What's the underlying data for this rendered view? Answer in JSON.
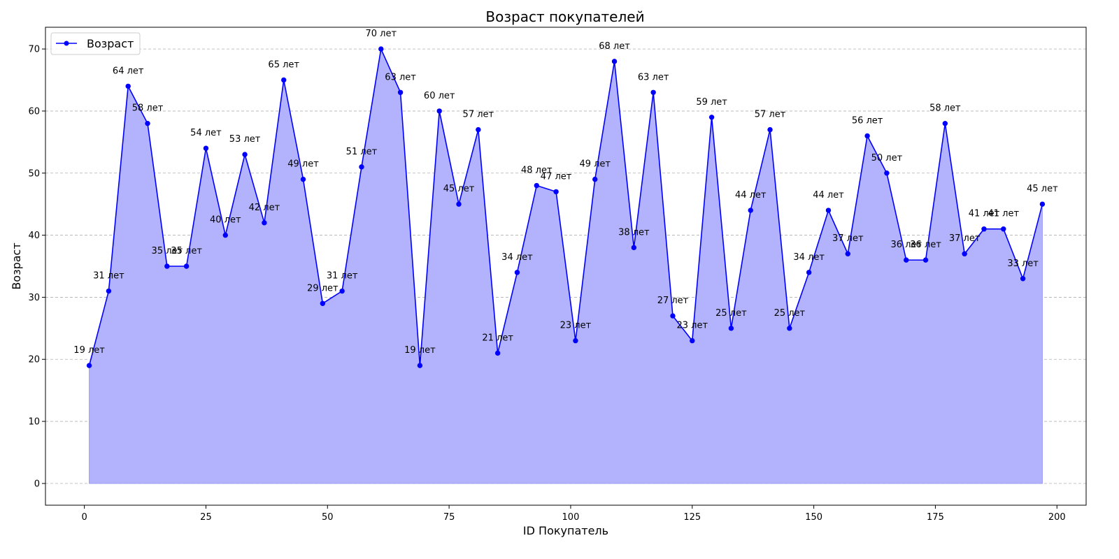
{
  "chart_data": {
    "type": "line",
    "title": "Возраст покупателей",
    "xlabel": "ID Покупатель",
    "ylabel": "Возраст",
    "xlim": [
      -8,
      206
    ],
    "ylim": [
      -3.5,
      73.5
    ],
    "x_ticks": [
      0,
      25,
      50,
      75,
      100,
      125,
      150,
      175,
      200
    ],
    "y_ticks": [
      0,
      10,
      20,
      30,
      40,
      50,
      60,
      70
    ],
    "grid": "horizontal dashed",
    "legend_position": "top-left",
    "label_suffix": " лет",
    "series": [
      {
        "name": "Возраст",
        "color": "#0000ff",
        "fill_color": "#b3b3fd",
        "x": [
          1,
          5,
          9,
          13,
          17,
          21,
          25,
          29,
          33,
          37,
          41,
          45,
          49,
          53,
          57,
          61,
          65,
          69,
          73,
          77,
          81,
          85,
          89,
          93,
          97,
          101,
          105,
          109,
          113,
          117,
          121,
          125,
          129,
          133,
          137,
          141,
          145,
          149,
          153,
          157,
          161,
          165,
          169,
          173,
          177,
          181,
          185,
          189,
          193,
          197
        ],
        "y": [
          19,
          31,
          64,
          58,
          35,
          35,
          54,
          40,
          53,
          42,
          65,
          49,
          29,
          31,
          51,
          70,
          63,
          19,
          60,
          45,
          57,
          21,
          34,
          48,
          47,
          23,
          49,
          68,
          38,
          63,
          27,
          23,
          59,
          25,
          44,
          57,
          25,
          34,
          44,
          37,
          56,
          50,
          36,
          36,
          58,
          37,
          41,
          41,
          33,
          45
        ]
      }
    ]
  }
}
